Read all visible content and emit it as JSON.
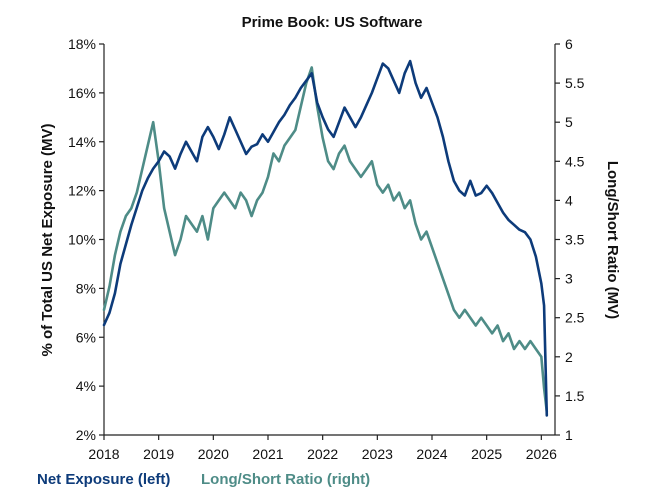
{
  "chart_data": {
    "type": "line",
    "title": "Prime Book: US Software",
    "ylabel_left": "% of Total US Net Exposure (MV)",
    "ylabel_right": "Long/Short Ratio (MV)",
    "xlabel": "",
    "x_ticks": [
      "2018",
      "2019",
      "2020",
      "2021",
      "2022",
      "2023",
      "2024",
      "2025",
      "2026"
    ],
    "y_left_ticks": [
      "2%",
      "4%",
      "6%",
      "8%",
      "10%",
      "12%",
      "14%",
      "16%",
      "18%"
    ],
    "y_right_ticks": [
      "1",
      "1.5",
      "2",
      "2.5",
      "3",
      "3.5",
      "4",
      "4.5",
      "5",
      "5.5",
      "6"
    ],
    "xlim": [
      2018.0,
      2026.25
    ],
    "ylim_left": [
      2,
      18
    ],
    "ylim_right": [
      1,
      6
    ],
    "grid": false,
    "legend_position": "bottom-left",
    "colors": {
      "net_exposure": "#0d3b7a",
      "long_short": "#4e8c87",
      "axis": "#222222",
      "text": "#111111"
    },
    "series": [
      {
        "name": "Net Exposure (left)",
        "axis": "left",
        "x": [
          2018.0,
          2018.1,
          2018.2,
          2018.3,
          2018.4,
          2018.5,
          2018.6,
          2018.7,
          2018.8,
          2018.9,
          2019.0,
          2019.1,
          2019.2,
          2019.3,
          2019.4,
          2019.5,
          2019.6,
          2019.7,
          2019.8,
          2019.9,
          2020.0,
          2020.1,
          2020.2,
          2020.3,
          2020.4,
          2020.5,
          2020.6,
          2020.7,
          2020.8,
          2020.9,
          2021.0,
          2021.1,
          2021.2,
          2021.3,
          2021.4,
          2021.5,
          2021.6,
          2021.7,
          2021.8,
          2021.9,
          2022.0,
          2022.1,
          2022.2,
          2022.3,
          2022.4,
          2022.5,
          2022.6,
          2022.7,
          2022.8,
          2022.9,
          2023.0,
          2023.1,
          2023.2,
          2023.3,
          2023.4,
          2023.5,
          2023.6,
          2023.7,
          2023.8,
          2023.9,
          2024.0,
          2024.1,
          2024.2,
          2024.3,
          2024.4,
          2024.5,
          2024.6,
          2024.7,
          2024.8,
          2024.9,
          2025.0,
          2025.1,
          2025.2,
          2025.3,
          2025.4,
          2025.5,
          2025.6,
          2025.7,
          2025.8,
          2025.9,
          2026.0,
          2026.05,
          2026.1
        ],
        "values": [
          6.5,
          7.0,
          7.8,
          9.0,
          9.8,
          10.6,
          11.3,
          12.0,
          12.5,
          12.9,
          13.2,
          13.6,
          13.4,
          12.9,
          13.5,
          14.0,
          13.6,
          13.2,
          14.2,
          14.6,
          14.2,
          13.7,
          14.3,
          15.0,
          14.5,
          14.0,
          13.5,
          13.8,
          13.9,
          14.3,
          14.0,
          14.4,
          14.8,
          15.1,
          15.5,
          15.8,
          16.2,
          16.5,
          16.8,
          15.6,
          15.0,
          14.5,
          14.2,
          14.8,
          15.4,
          15.0,
          14.6,
          15.0,
          15.5,
          16.0,
          16.6,
          17.2,
          17.0,
          16.5,
          16.0,
          16.8,
          17.3,
          16.4,
          15.8,
          16.2,
          15.6,
          15.0,
          14.2,
          13.2,
          12.4,
          12.0,
          11.8,
          12.4,
          11.8,
          11.9,
          12.2,
          11.9,
          11.5,
          11.1,
          10.8,
          10.6,
          10.4,
          10.3,
          10.0,
          9.3,
          8.2,
          7.3,
          2.8
        ]
      },
      {
        "name": "Long/Short Ratio (right)",
        "axis": "right",
        "x": [
          2018.0,
          2018.1,
          2018.2,
          2018.3,
          2018.4,
          2018.5,
          2018.6,
          2018.7,
          2018.8,
          2018.9,
          2019.0,
          2019.1,
          2019.2,
          2019.3,
          2019.4,
          2019.5,
          2019.6,
          2019.7,
          2019.8,
          2019.9,
          2020.0,
          2020.1,
          2020.2,
          2020.3,
          2020.4,
          2020.5,
          2020.6,
          2020.7,
          2020.8,
          2020.9,
          2021.0,
          2021.1,
          2021.2,
          2021.3,
          2021.4,
          2021.5,
          2021.6,
          2021.7,
          2021.8,
          2021.9,
          2022.0,
          2022.1,
          2022.2,
          2022.3,
          2022.4,
          2022.5,
          2022.6,
          2022.7,
          2022.8,
          2022.9,
          2023.0,
          2023.1,
          2023.2,
          2023.3,
          2023.4,
          2023.5,
          2023.6,
          2023.7,
          2023.8,
          2023.9,
          2024.0,
          2024.1,
          2024.2,
          2024.3,
          2024.4,
          2024.5,
          2024.6,
          2024.7,
          2024.8,
          2024.9,
          2025.0,
          2025.1,
          2025.2,
          2025.3,
          2025.4,
          2025.5,
          2025.6,
          2025.7,
          2025.8,
          2025.9,
          2026.0,
          2026.05,
          2026.1
        ],
        "values": [
          2.6,
          2.9,
          3.3,
          3.6,
          3.8,
          3.9,
          4.1,
          4.4,
          4.7,
          5.0,
          4.5,
          3.9,
          3.6,
          3.3,
          3.5,
          3.8,
          3.7,
          3.6,
          3.8,
          3.5,
          3.9,
          4.0,
          4.1,
          4.0,
          3.9,
          4.1,
          4.0,
          3.8,
          4.0,
          4.1,
          4.3,
          4.6,
          4.5,
          4.7,
          4.8,
          4.9,
          5.2,
          5.5,
          5.7,
          5.2,
          4.8,
          4.5,
          4.4,
          4.6,
          4.7,
          4.5,
          4.4,
          4.3,
          4.4,
          4.5,
          4.2,
          4.1,
          4.2,
          4.0,
          4.1,
          3.9,
          4.0,
          3.7,
          3.5,
          3.6,
          3.4,
          3.2,
          3.0,
          2.8,
          2.6,
          2.5,
          2.6,
          2.5,
          2.4,
          2.5,
          2.4,
          2.3,
          2.4,
          2.2,
          2.3,
          2.1,
          2.2,
          2.1,
          2.2,
          2.1,
          2.0,
          1.6,
          1.3
        ]
      }
    ]
  },
  "legend": {
    "net_exposure_label": "Net Exposure (left)",
    "long_short_label": "Long/Short Ratio (right)"
  }
}
